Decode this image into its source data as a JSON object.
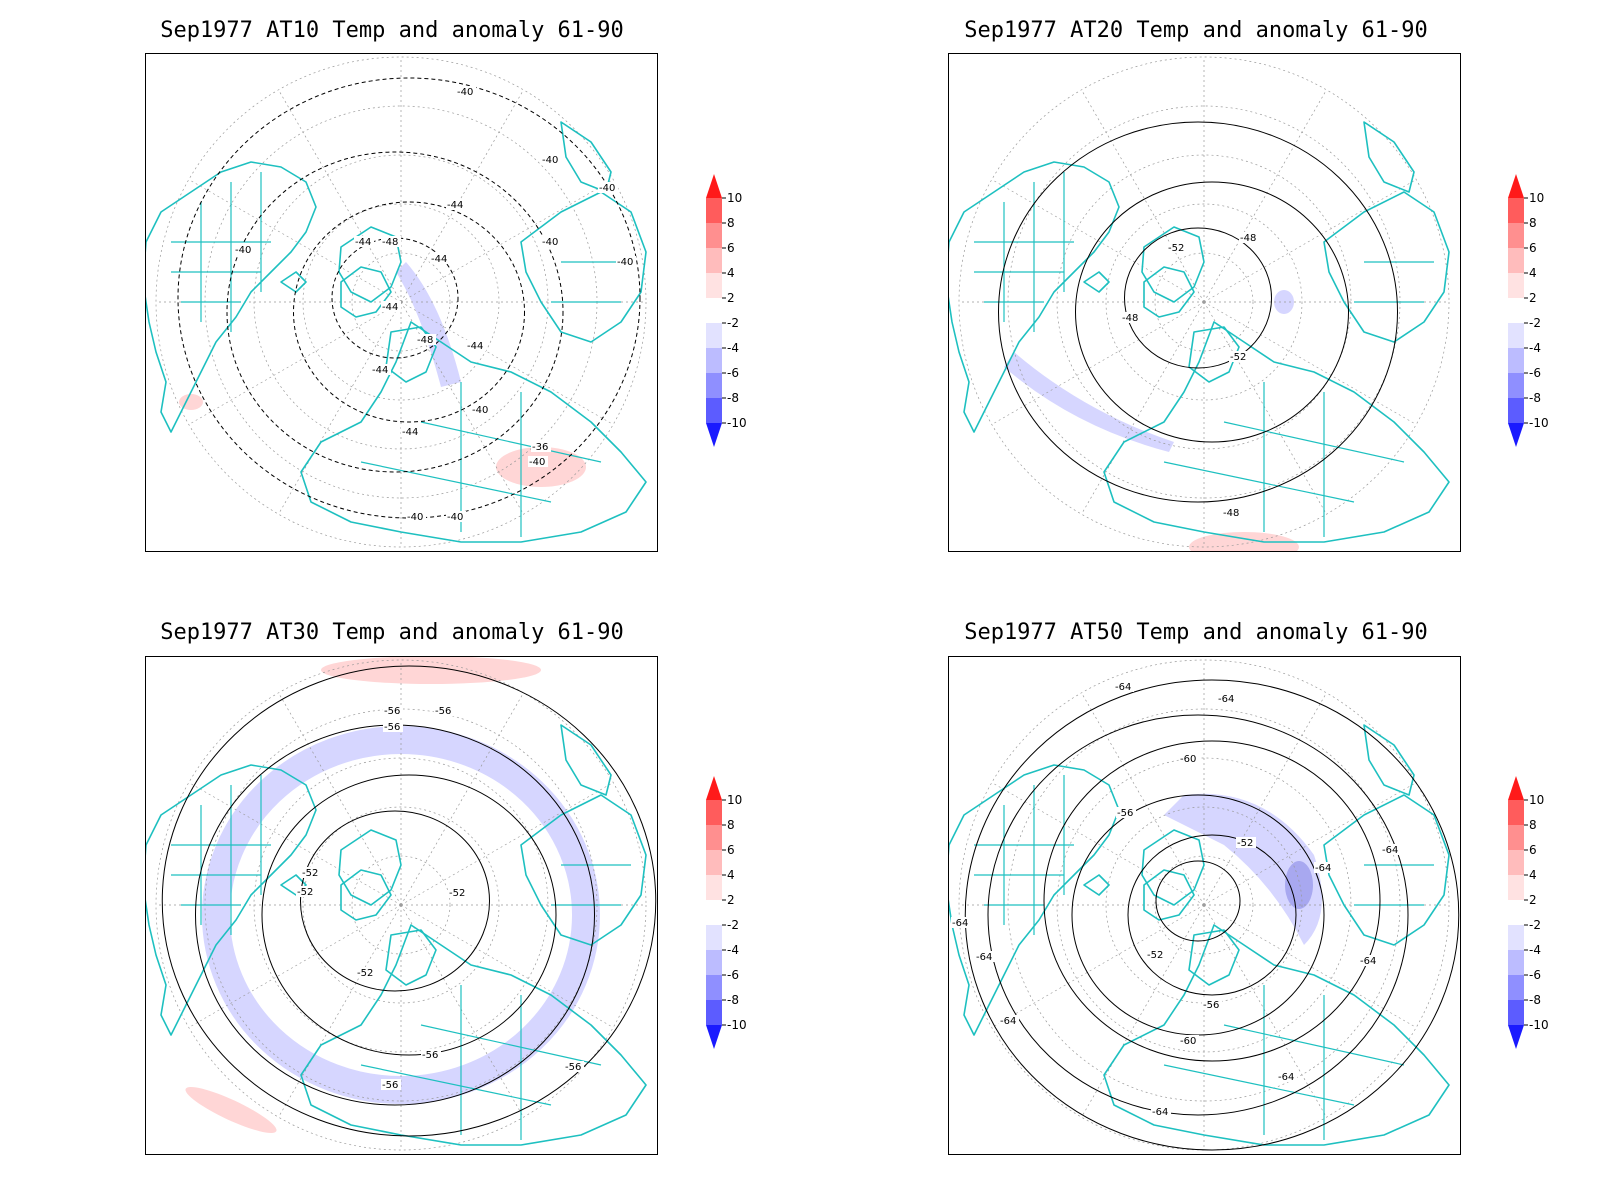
{
  "panels": [
    {
      "title": "Sep1977 AT10 Temp and anomaly 61-90",
      "contour_labels": [
        "-40",
        "-40",
        "-40",
        "-40",
        "-40",
        "-40",
        "-44",
        "-44",
        "-48",
        "-44",
        "-44",
        "-48",
        "-44",
        "-44",
        "-40",
        "-36",
        "-44",
        "-40",
        "-40",
        "-40"
      ],
      "anomaly": "mixed"
    },
    {
      "title": "Sep1977 AT20 Temp and anomaly 61-90",
      "contour_labels": [
        "-52",
        "-48",
        "-48",
        "-52",
        "-48"
      ],
      "anomaly": "cool"
    },
    {
      "title": "Sep1977 AT30 Temp and anomaly 61-90",
      "contour_labels": [
        "-56",
        "-56",
        "-56",
        "-52",
        "-52",
        "-52",
        "-52",
        "-56",
        "-56",
        "-56"
      ],
      "anomaly": "cool-ring"
    },
    {
      "title": "Sep1977 AT50 Temp and anomaly 61-90",
      "contour_labels": [
        "-64",
        "-64",
        "-60",
        "-56",
        "-52",
        "-64",
        "-64",
        "-64",
        "-64",
        "-52",
        "-56",
        "-60",
        "-64",
        "-64",
        "-64",
        "-64"
      ],
      "anomaly": "cool-center"
    }
  ],
  "colorbar": {
    "ticks": [
      "10",
      "8",
      "6",
      "4",
      "2",
      "-2",
      "-4",
      "-6",
      "-8",
      "-10"
    ],
    "colors": [
      "#ff1a1a",
      "#ff5c5c",
      "#ff8f8f",
      "#ffbcbc",
      "#ffe2e2",
      "#ffffff",
      "#e2e2ff",
      "#bcbcff",
      "#8f8fff",
      "#5c5cff",
      "#1a1aff"
    ]
  },
  "coastline_color": "#1ec0c0"
}
